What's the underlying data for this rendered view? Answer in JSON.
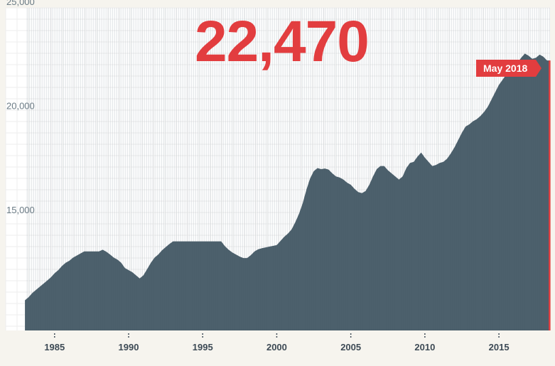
{
  "headline_value": "22,470",
  "callout_label": "May 2018",
  "colors": {
    "bars": "#4b5f6b",
    "accent": "#e23d3f",
    "grid": "#eeeeee",
    "background": "#f6f4ee"
  },
  "chart_data": {
    "type": "area",
    "title": "",
    "xlabel": "",
    "ylabel": "",
    "xlim": [
      1981.7,
      2018.45
    ],
    "ylim": [
      9500,
      25000
    ],
    "y_ticks": [
      {
        "value": 25000,
        "label": "25,000"
      },
      {
        "value": 20000,
        "label": "20,000"
      },
      {
        "value": 15000,
        "label": "15,000"
      }
    ],
    "x_ticks": [
      {
        "value": 1985,
        "label": "1985"
      },
      {
        "value": 1990,
        "label": "1990"
      },
      {
        "value": 1995,
        "label": "1995"
      },
      {
        "value": 2000,
        "label": "2000"
      },
      {
        "value": 2005,
        "label": "2005"
      },
      {
        "value": 2010,
        "label": "2010"
      },
      {
        "value": 2015,
        "label": "2015"
      }
    ],
    "series": [
      {
        "points": [
          [
            1983.0,
            10950
          ],
          [
            1983.25,
            11100
          ],
          [
            1983.5,
            11300
          ],
          [
            1983.75,
            11450
          ],
          [
            1984.0,
            11600
          ],
          [
            1984.25,
            11750
          ],
          [
            1984.5,
            11900
          ],
          [
            1984.75,
            12050
          ],
          [
            1985.0,
            12250
          ],
          [
            1985.25,
            12400
          ],
          [
            1985.5,
            12600
          ],
          [
            1985.75,
            12750
          ],
          [
            1986.0,
            12850
          ],
          [
            1986.25,
            13000
          ],
          [
            1986.5,
            13100
          ],
          [
            1986.75,
            13200
          ],
          [
            1987.0,
            13300
          ],
          [
            1987.5,
            13300
          ],
          [
            1987.75,
            13300
          ],
          [
            1988.0,
            13300
          ],
          [
            1988.25,
            13380
          ],
          [
            1988.5,
            13280
          ],
          [
            1988.75,
            13150
          ],
          [
            1989.0,
            13000
          ],
          [
            1989.25,
            12900
          ],
          [
            1989.5,
            12750
          ],
          [
            1989.75,
            12500
          ],
          [
            1990.0,
            12400
          ],
          [
            1990.25,
            12300
          ],
          [
            1990.5,
            12150
          ],
          [
            1990.75,
            12000
          ],
          [
            1991.0,
            12150
          ],
          [
            1991.25,
            12450
          ],
          [
            1991.5,
            12750
          ],
          [
            1991.75,
            13000
          ],
          [
            1992.0,
            13150
          ],
          [
            1992.25,
            13350
          ],
          [
            1992.5,
            13500
          ],
          [
            1992.75,
            13650
          ],
          [
            1993.0,
            13780
          ],
          [
            1993.5,
            13780
          ],
          [
            1994.0,
            13780
          ],
          [
            1994.5,
            13780
          ],
          [
            1995.0,
            13780
          ],
          [
            1995.5,
            13780
          ],
          [
            1996.0,
            13780
          ],
          [
            1996.25,
            13780
          ],
          [
            1996.5,
            13550
          ],
          [
            1996.75,
            13380
          ],
          [
            1997.0,
            13250
          ],
          [
            1997.25,
            13150
          ],
          [
            1997.5,
            13050
          ],
          [
            1997.75,
            12980
          ],
          [
            1998.0,
            12980
          ],
          [
            1998.25,
            13120
          ],
          [
            1998.5,
            13300
          ],
          [
            1998.75,
            13400
          ],
          [
            1999.0,
            13450
          ],
          [
            1999.5,
            13530
          ],
          [
            2000.0,
            13600
          ],
          [
            2000.25,
            13800
          ],
          [
            2000.5,
            14000
          ],
          [
            2000.75,
            14150
          ],
          [
            2001.0,
            14350
          ],
          [
            2001.25,
            14700
          ],
          [
            2001.5,
            15100
          ],
          [
            2001.75,
            15600
          ],
          [
            2002.0,
            16250
          ],
          [
            2002.25,
            16800
          ],
          [
            2002.5,
            17150
          ],
          [
            2002.75,
            17300
          ],
          [
            2003.0,
            17250
          ],
          [
            2003.25,
            17280
          ],
          [
            2003.5,
            17230
          ],
          [
            2003.75,
            17050
          ],
          [
            2004.0,
            16900
          ],
          [
            2004.25,
            16850
          ],
          [
            2004.5,
            16750
          ],
          [
            2004.75,
            16600
          ],
          [
            2005.0,
            16500
          ],
          [
            2005.25,
            16300
          ],
          [
            2005.5,
            16150
          ],
          [
            2005.75,
            16100
          ],
          [
            2006.0,
            16200
          ],
          [
            2006.25,
            16500
          ],
          [
            2006.5,
            16900
          ],
          [
            2006.75,
            17250
          ],
          [
            2007.0,
            17400
          ],
          [
            2007.25,
            17400
          ],
          [
            2007.5,
            17200
          ],
          [
            2007.75,
            17050
          ],
          [
            2008.0,
            16900
          ],
          [
            2008.25,
            16750
          ],
          [
            2008.5,
            16900
          ],
          [
            2008.75,
            17300
          ],
          [
            2009.0,
            17550
          ],
          [
            2009.25,
            17600
          ],
          [
            2009.5,
            17850
          ],
          [
            2009.75,
            18050
          ],
          [
            2010.0,
            17800
          ],
          [
            2010.25,
            17600
          ],
          [
            2010.5,
            17400
          ],
          [
            2010.75,
            17450
          ],
          [
            2011.0,
            17550
          ],
          [
            2011.25,
            17600
          ],
          [
            2011.5,
            17750
          ],
          [
            2011.75,
            18000
          ],
          [
            2012.0,
            18300
          ],
          [
            2012.25,
            18650
          ],
          [
            2012.5,
            19000
          ],
          [
            2012.75,
            19300
          ],
          [
            2013.0,
            19400
          ],
          [
            2013.25,
            19550
          ],
          [
            2013.5,
            19650
          ],
          [
            2013.75,
            19800
          ],
          [
            2014.0,
            20000
          ],
          [
            2014.25,
            20250
          ],
          [
            2014.5,
            20600
          ],
          [
            2014.75,
            20950
          ],
          [
            2015.0,
            21300
          ],
          [
            2015.25,
            21550
          ],
          [
            2015.5,
            21800
          ],
          [
            2015.75,
            22000
          ],
          [
            2016.0,
            22200
          ],
          [
            2016.25,
            22350
          ],
          [
            2016.5,
            22600
          ],
          [
            2016.75,
            22800
          ],
          [
            2017.0,
            22700
          ],
          [
            2017.25,
            22550
          ],
          [
            2017.5,
            22600
          ],
          [
            2017.75,
            22750
          ],
          [
            2018.0,
            22650
          ],
          [
            2018.25,
            22470
          ],
          [
            2018.42,
            22470
          ]
        ]
      }
    ]
  }
}
